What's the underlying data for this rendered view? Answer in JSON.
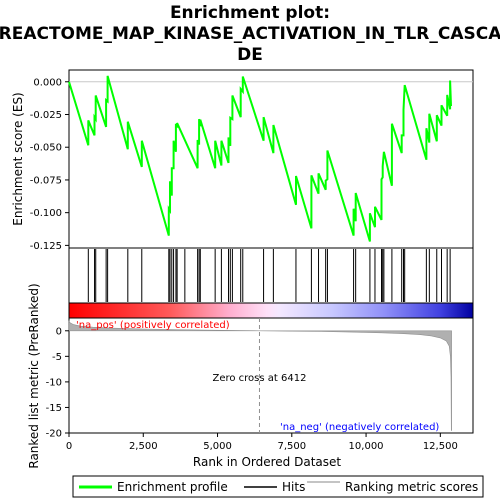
{
  "chart_data": {
    "type": "line",
    "title": [
      "Enrichment plot:",
      "REACTOME_MAP_KINASE_ACTIVATION_IN_TLR_CASCA",
      "DE"
    ],
    "top_panel": {
      "ylabel": "Enrichment score (ES)",
      "ylim": [
        -0.127,
        0.009
      ],
      "yticks": [
        0.0,
        -0.025,
        -0.05,
        -0.075,
        -0.1,
        -0.125
      ],
      "ytick_labels": [
        "0.000",
        "-0.025",
        "-0.050",
        "-0.075",
        "-0.100",
        "-0.125"
      ],
      "grid": false,
      "series": [
        {
          "name": "Enrichment profile",
          "color": "#00ff00",
          "x": [
            0,
            650,
            650,
            860,
            860,
            900,
            900,
            1250,
            1250,
            1300,
            1300,
            1980,
            1980,
            2450,
            2450,
            3360,
            3360,
            3400,
            3400,
            3460,
            3460,
            3520,
            3520,
            3600,
            3600,
            3640,
            3640,
            4330,
            4330,
            4380,
            4380,
            4420,
            4420,
            4920,
            4920,
            5130,
            5130,
            5370,
            5370,
            5430,
            5430,
            5500,
            5500,
            5780,
            5780,
            5850,
            5850,
            6550,
            6550,
            6880,
            6880,
            7640,
            7640,
            8160,
            8160,
            8400,
            8400,
            8640,
            8640,
            8700,
            8700,
            9580,
            9580,
            9650,
            9650,
            10130,
            10130,
            10300,
            10300,
            10520,
            10520,
            10560,
            10560,
            10600,
            10600,
            10870,
            10870,
            11200,
            11200,
            11260,
            11260,
            11300,
            11300,
            12030,
            12030,
            12130,
            12130,
            12380,
            12380,
            12540,
            12540,
            12730,
            12730,
            12830,
            12830,
            12860
          ],
          "y": [
            0.0,
            -0.0485,
            -0.0295,
            -0.041,
            -0.027,
            -0.0285,
            -0.0105,
            -0.0345,
            -0.014,
            -0.015,
            0.0045,
            -0.0515,
            -0.0305,
            -0.065,
            -0.045,
            -0.1175,
            -0.097,
            -0.0985,
            -0.076,
            -0.087,
            -0.066,
            -0.066,
            -0.045,
            -0.0535,
            -0.032,
            -0.035,
            -0.0315,
            -0.066,
            -0.0445,
            -0.048,
            -0.0285,
            -0.034,
            -0.029,
            -0.066,
            -0.045,
            -0.064,
            -0.045,
            -0.062,
            -0.0425,
            -0.049,
            -0.0275,
            -0.0285,
            -0.0105,
            -0.027,
            -0.0055,
            -0.0075,
            0.004,
            -0.045,
            -0.027,
            -0.0545,
            -0.033,
            -0.094,
            -0.072,
            -0.112,
            -0.0715,
            -0.0855,
            -0.07,
            -0.0825,
            -0.0755,
            -0.0745,
            -0.0525,
            -0.1175,
            -0.097,
            -0.1065,
            -0.085,
            -0.122,
            -0.1005,
            -0.111,
            -0.0955,
            -0.1055,
            -0.0745,
            -0.073,
            -0.0645,
            -0.0535,
            -0.0535,
            -0.0795,
            -0.032,
            -0.0545,
            -0.041,
            -0.041,
            -0.0215,
            -0.0025,
            -0.0025,
            -0.0595,
            -0.0355,
            -0.0465,
            -0.0245,
            -0.0455,
            -0.0255,
            -0.0335,
            -0.018,
            -0.026,
            -0.01,
            -0.021,
            0.001,
            -0.0185
          ]
        }
      ]
    },
    "hits_panel": {
      "positions": [
        650,
        860,
        900,
        1250,
        1300,
        1980,
        2450,
        3360,
        3400,
        3460,
        3520,
        3600,
        3640,
        3900,
        4330,
        4380,
        4420,
        4920,
        5130,
        5370,
        5430,
        5500,
        5780,
        5850,
        6550,
        6880,
        7640,
        8160,
        8400,
        8640,
        8700,
        9580,
        9650,
        10130,
        10300,
        10520,
        10560,
        10600,
        10870,
        11200,
        11260,
        11300,
        12030,
        12130,
        12380,
        12540,
        12730,
        12830
      ],
      "color": "#000000"
    },
    "colorbar": {
      "note_pos": "'na_pos' (positively correlated)",
      "note_pos_color": "#ff0000",
      "note_neg": "'na_neg' (negatively correlated)",
      "note_neg_color": "#0000ff"
    },
    "bottom_panel": {
      "ylabel": "Ranked list metric (PreRanked)",
      "xlabel": "Rank in Ordered Dataset",
      "ylim": [
        -20,
        2.5
      ],
      "yticks": [
        0,
        -5,
        -10,
        -15,
        -20
      ],
      "ytick_labels": [
        "0",
        "-5",
        "-10",
        "-15",
        "-20"
      ],
      "xlim": [
        0,
        13600
      ],
      "xticks": [
        0,
        2500,
        5000,
        7500,
        10000,
        12500
      ],
      "xtick_labels": [
        "0",
        "2,500",
        "5,000",
        "7,500",
        "10,000",
        "12,500"
      ],
      "zero_cross_rank": 6412,
      "zero_cross_label": "Zero cross at 6412",
      "metric_x": [
        0,
        30,
        150,
        400,
        800,
        1500,
        2500,
        3500,
        4500,
        5500,
        6412,
        7500,
        8500,
        9500,
        10500,
        11200,
        11800,
        12200,
        12500,
        12700,
        12800,
        12840,
        12860,
        12870,
        12880
      ],
      "metric_y": [
        2.0,
        1.6,
        1.2,
        0.9,
        0.7,
        0.5,
        0.35,
        0.25,
        0.15,
        0.07,
        0.0,
        -0.08,
        -0.15,
        -0.25,
        -0.4,
        -0.55,
        -0.75,
        -1.0,
        -1.4,
        -2.0,
        -3.0,
        -5.0,
        -9.0,
        -19.5,
        -19.5
      ],
      "metric_color": "#a0a0a0"
    },
    "legend": {
      "placement": "bottom",
      "entries": [
        {
          "label": "Enrichment profile",
          "color": "#00ff00",
          "kind": "line-thick"
        },
        {
          "label": "Hits",
          "color": "#000000",
          "kind": "line"
        },
        {
          "label": "Ranking metric scores",
          "color": "#a0a0a0",
          "kind": "line"
        }
      ]
    }
  }
}
